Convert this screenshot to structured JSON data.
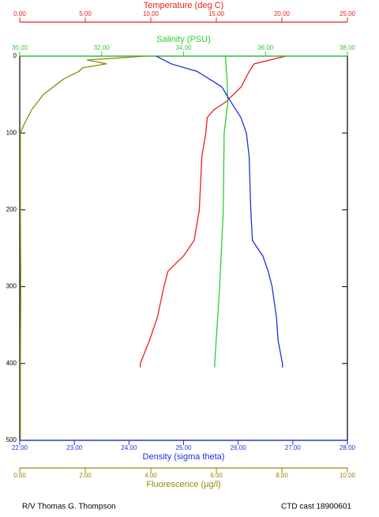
{
  "chart_data": {
    "type": "profile",
    "ylim": [
      0,
      500
    ],
    "yticks": [
      0,
      100,
      200,
      300,
      400,
      500
    ],
    "footer_left": "R/V Thomas G. Thompson",
    "footer_right": "CTD cast 18900601",
    "series": [
      {
        "name": "Temperature (deg C)",
        "color": "#e8201c",
        "axis_side": "top",
        "xlim": [
          0,
          25
        ],
        "xticks": [
          {
            "value": 0,
            "label": "0.00"
          },
          {
            "value": 5,
            "label": "5.00"
          },
          {
            "value": 10,
            "label": "10.00"
          },
          {
            "value": 15,
            "label": "15.00"
          },
          {
            "value": 20,
            "label": "20.00"
          },
          {
            "value": 25,
            "label": "25.00"
          }
        ],
        "depth": [
          0,
          10,
          20,
          40,
          60,
          70,
          80,
          100,
          130,
          200,
          240,
          260,
          280,
          300,
          340,
          370,
          400,
          405
        ],
        "values": [
          20.3,
          17.9,
          17.5,
          16.9,
          15.7,
          14.8,
          14.3,
          14.2,
          13.9,
          13.7,
          13.3,
          12.5,
          11.3,
          11.0,
          10.5,
          9.9,
          9.2,
          9.2
        ]
      },
      {
        "name": "Salinity (PSU)",
        "color": "#2ecc2e",
        "axis_side": "top",
        "xlim": [
          30,
          38
        ],
        "xticks": [
          {
            "value": 30,
            "label": "30.00"
          },
          {
            "value": 32,
            "label": "32.00"
          },
          {
            "value": 34,
            "label": "34.00"
          },
          {
            "value": 36,
            "label": "36.00"
          },
          {
            "value": 38,
            "label": "38.00"
          }
        ],
        "depth": [
          0,
          30,
          60,
          100,
          200,
          300,
          400,
          405
        ],
        "values": [
          35.02,
          35.06,
          35.08,
          34.99,
          34.97,
          34.88,
          34.76,
          34.76
        ]
      },
      {
        "name": "Density (sigma theta)",
        "color": "#1f2fe0",
        "axis_side": "bottom",
        "xlim": [
          22,
          28
        ],
        "xticks": [
          {
            "value": 22,
            "label": "22.00"
          },
          {
            "value": 23,
            "label": "23.00"
          },
          {
            "value": 24,
            "label": "24.00"
          },
          {
            "value": 25,
            "label": "25.00"
          },
          {
            "value": 26,
            "label": "26.00"
          },
          {
            "value": 27,
            "label": "27.00"
          },
          {
            "value": 28,
            "label": "28.00"
          }
        ],
        "depth": [
          0,
          10,
          20,
          40,
          60,
          80,
          100,
          130,
          200,
          240,
          260,
          280,
          300,
          340,
          370,
          400,
          405
        ],
        "values": [
          24.5,
          24.77,
          25.25,
          25.7,
          25.87,
          26.05,
          26.15,
          26.2,
          26.23,
          26.26,
          26.45,
          26.55,
          26.62,
          26.7,
          26.73,
          26.81,
          26.81
        ]
      },
      {
        "name": "Fluorescence (μg/l)",
        "color": "#8f8a10",
        "axis_side": "bottom",
        "xlim": [
          0,
          10
        ],
        "xticks": [
          {
            "value": 0,
            "label": "0.00"
          },
          {
            "value": 2,
            "label": "2.00"
          },
          {
            "value": 4,
            "label": "4.00"
          },
          {
            "value": 6,
            "label": "6.00"
          },
          {
            "value": 8,
            "label": "8.00"
          },
          {
            "value": 10,
            "label": "10.00"
          }
        ],
        "depth": [
          0,
          5,
          10,
          15,
          20,
          30,
          50,
          70,
          90,
          100,
          200,
          300,
          400,
          500
        ],
        "values": [
          3.85,
          2.05,
          2.65,
          1.93,
          1.8,
          1.33,
          0.72,
          0.36,
          0.12,
          0.02,
          0.02,
          0.03,
          0.02,
          0.02
        ]
      }
    ]
  }
}
